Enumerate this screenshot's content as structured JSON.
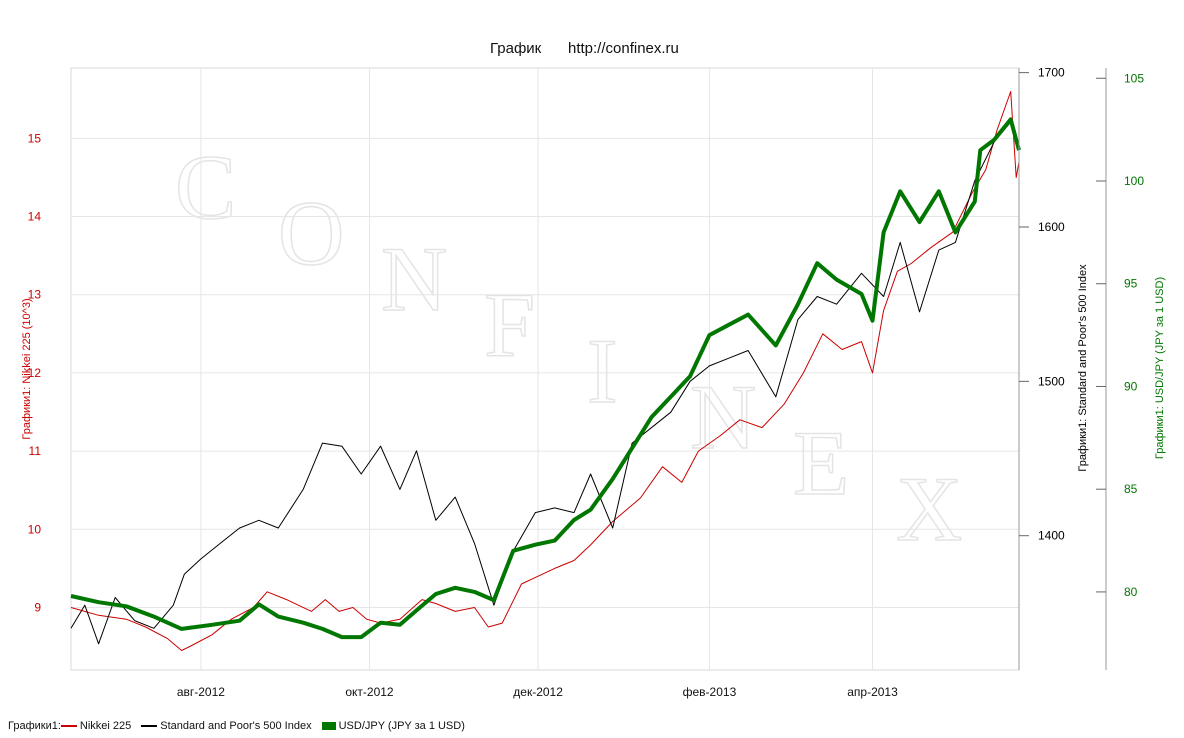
{
  "header": {
    "title": "График",
    "source": "http://confinex.ru"
  },
  "watermark": [
    "C",
    "O",
    "N",
    "F",
    "I",
    "N",
    "E",
    "X"
  ],
  "legend": {
    "prefix": "Графики1:",
    "items": [
      {
        "label": "Nikkei 225",
        "color": "#cc0000"
      },
      {
        "label": "Standard and Poor's 500 Index",
        "color": "#000000"
      },
      {
        "label": "USD/JPY (JPY за 1 USD)",
        "color": "#007700"
      }
    ]
  },
  "chart_data": {
    "type": "line",
    "title": "График",
    "x_ticks": [
      "авг-2012",
      "окт-2012",
      "дек-2012",
      "фев-2013",
      "апр-2013"
    ],
    "x_range": [
      "2012-06-15",
      "2013-05-24"
    ],
    "x_tick_dates": [
      "2012-08-01",
      "2012-10-01",
      "2012-12-01",
      "2013-02-01",
      "2013-04-01"
    ],
    "grid": true,
    "legend_position": "bottom-left",
    "axes": {
      "left": {
        "label": "Графики1: Nikkei 225 (10^3)",
        "range": [
          8.2,
          15.9
        ],
        "ticks": [
          9,
          10,
          11,
          12,
          13,
          14,
          15
        ],
        "color": "#cc0000"
      },
      "right1": {
        "label": "Графики1: Standard and Poor's 500 Index",
        "range": [
          1313,
          1703
        ],
        "ticks": [
          1400,
          1500,
          1600,
          1700
        ],
        "color": "#000000"
      },
      "right2": {
        "label": "Графики1: USD/JPY (JPY за 1 USD)",
        "range": [
          76.2,
          105.5
        ],
        "ticks": [
          80,
          85,
          90,
          95,
          100,
          105
        ],
        "color": "#007700"
      }
    },
    "series": [
      {
        "name": "Nikkei 225",
        "axis": "left",
        "color": "#cc0000",
        "points": [
          [
            "2012-06-15",
            9.0
          ],
          [
            "2012-06-25",
            8.9
          ],
          [
            "2012-07-05",
            8.85
          ],
          [
            "2012-07-12",
            8.75
          ],
          [
            "2012-07-20",
            8.6
          ],
          [
            "2012-07-25",
            8.45
          ],
          [
            "2012-07-28",
            8.5
          ],
          [
            "2012-08-05",
            8.65
          ],
          [
            "2012-08-12",
            8.85
          ],
          [
            "2012-08-20",
            9.0
          ],
          [
            "2012-08-25",
            9.2
          ],
          [
            "2012-09-01",
            9.1
          ],
          [
            "2012-09-10",
            8.95
          ],
          [
            "2012-09-15",
            9.1
          ],
          [
            "2012-09-20",
            8.95
          ],
          [
            "2012-09-25",
            9.0
          ],
          [
            "2012-09-30",
            8.85
          ],
          [
            "2012-10-05",
            8.8
          ],
          [
            "2012-10-12",
            8.85
          ],
          [
            "2012-10-20",
            9.1
          ],
          [
            "2012-10-25",
            9.05
          ],
          [
            "2012-11-01",
            8.95
          ],
          [
            "2012-11-08",
            9.0
          ],
          [
            "2012-11-13",
            8.75
          ],
          [
            "2012-11-18",
            8.8
          ],
          [
            "2012-11-25",
            9.3
          ],
          [
            "2012-12-01",
            9.4
          ],
          [
            "2012-12-07",
            9.5
          ],
          [
            "2012-12-14",
            9.6
          ],
          [
            "2012-12-20",
            9.8
          ],
          [
            "2012-12-28",
            10.1
          ],
          [
            "2013-01-07",
            10.4
          ],
          [
            "2013-01-15",
            10.8
          ],
          [
            "2013-01-22",
            10.6
          ],
          [
            "2013-01-28",
            11.0
          ],
          [
            "2013-02-05",
            11.2
          ],
          [
            "2013-02-12",
            11.4
          ],
          [
            "2013-02-20",
            11.3
          ],
          [
            "2013-02-28",
            11.6
          ],
          [
            "2013-03-07",
            12.0
          ],
          [
            "2013-03-14",
            12.5
          ],
          [
            "2013-03-21",
            12.3
          ],
          [
            "2013-03-28",
            12.4
          ],
          [
            "2013-04-01",
            12.0
          ],
          [
            "2013-04-05",
            12.8
          ],
          [
            "2013-04-10",
            13.3
          ],
          [
            "2013-04-15",
            13.4
          ],
          [
            "2013-04-22",
            13.6
          ],
          [
            "2013-04-30",
            13.8
          ],
          [
            "2013-05-07",
            14.3
          ],
          [
            "2013-05-12",
            14.6
          ],
          [
            "2013-05-16",
            15.1
          ],
          [
            "2013-05-21",
            15.6
          ],
          [
            "2013-05-23",
            14.5
          ],
          [
            "2013-05-24",
            14.7
          ]
        ]
      },
      {
        "name": "Standard and Poor's 500 Index",
        "axis": "right1",
        "color": "#000000",
        "points": [
          [
            "2012-06-15",
            1340
          ],
          [
            "2012-06-20",
            1355
          ],
          [
            "2012-06-25",
            1330
          ],
          [
            "2012-07-01",
            1360
          ],
          [
            "2012-07-08",
            1345
          ],
          [
            "2012-07-15",
            1340
          ],
          [
            "2012-07-22",
            1355
          ],
          [
            "2012-07-26",
            1375
          ],
          [
            "2012-08-01",
            1385
          ],
          [
            "2012-08-08",
            1395
          ],
          [
            "2012-08-15",
            1405
          ],
          [
            "2012-08-22",
            1410
          ],
          [
            "2012-08-29",
            1405
          ],
          [
            "2012-09-07",
            1430
          ],
          [
            "2012-09-14",
            1460
          ],
          [
            "2012-09-21",
            1458
          ],
          [
            "2012-09-28",
            1440
          ],
          [
            "2012-10-05",
            1458
          ],
          [
            "2012-10-12",
            1430
          ],
          [
            "2012-10-18",
            1455
          ],
          [
            "2012-10-25",
            1410
          ],
          [
            "2012-11-01",
            1425
          ],
          [
            "2012-11-08",
            1395
          ],
          [
            "2012-11-15",
            1355
          ],
          [
            "2012-11-22",
            1390
          ],
          [
            "2012-11-30",
            1415
          ],
          [
            "2012-12-07",
            1418
          ],
          [
            "2012-12-14",
            1415
          ],
          [
            "2012-12-20",
            1440
          ],
          [
            "2012-12-28",
            1405
          ],
          [
            "2013-01-04",
            1460
          ],
          [
            "2013-01-11",
            1470
          ],
          [
            "2013-01-18",
            1480
          ],
          [
            "2013-01-25",
            1500
          ],
          [
            "2013-02-01",
            1510
          ],
          [
            "2013-02-08",
            1515
          ],
          [
            "2013-02-15",
            1520
          ],
          [
            "2013-02-25",
            1490
          ],
          [
            "2013-03-05",
            1540
          ],
          [
            "2013-03-12",
            1555
          ],
          [
            "2013-03-19",
            1550
          ],
          [
            "2013-03-28",
            1570
          ],
          [
            "2013-04-05",
            1555
          ],
          [
            "2013-04-11",
            1590
          ],
          [
            "2013-04-18",
            1545
          ],
          [
            "2013-04-25",
            1585
          ],
          [
            "2013-05-01",
            1590
          ],
          [
            "2013-05-08",
            1630
          ],
          [
            "2013-05-15",
            1655
          ],
          [
            "2013-05-21",
            1668
          ],
          [
            "2013-05-24",
            1650
          ]
        ]
      },
      {
        "name": "USD/JPY (JPY за 1 USD)",
        "axis": "right2",
        "color": "#007700",
        "points": [
          [
            "2012-06-15",
            79.8
          ],
          [
            "2012-06-25",
            79.5
          ],
          [
            "2012-07-05",
            79.3
          ],
          [
            "2012-07-15",
            78.8
          ],
          [
            "2012-07-25",
            78.2
          ],
          [
            "2012-08-05",
            78.4
          ],
          [
            "2012-08-15",
            78.6
          ],
          [
            "2012-08-22",
            79.4
          ],
          [
            "2012-08-29",
            78.8
          ],
          [
            "2012-09-07",
            78.5
          ],
          [
            "2012-09-14",
            78.2
          ],
          [
            "2012-09-21",
            77.8
          ],
          [
            "2012-09-28",
            77.8
          ],
          [
            "2012-10-05",
            78.5
          ],
          [
            "2012-10-12",
            78.4
          ],
          [
            "2012-10-18",
            79.1
          ],
          [
            "2012-10-25",
            79.9
          ],
          [
            "2012-11-01",
            80.2
          ],
          [
            "2012-11-08",
            80.0
          ],
          [
            "2012-11-15",
            79.6
          ],
          [
            "2012-11-22",
            82.0
          ],
          [
            "2012-11-30",
            82.3
          ],
          [
            "2012-12-07",
            82.5
          ],
          [
            "2012-12-14",
            83.5
          ],
          [
            "2012-12-20",
            84.0
          ],
          [
            "2012-12-28",
            85.5
          ],
          [
            "2013-01-04",
            87.0
          ],
          [
            "2013-01-11",
            88.5
          ],
          [
            "2013-01-18",
            89.5
          ],
          [
            "2013-01-25",
            90.5
          ],
          [
            "2013-02-01",
            92.5
          ],
          [
            "2013-02-08",
            93.0
          ],
          [
            "2013-02-15",
            93.5
          ],
          [
            "2013-02-25",
            92.0
          ],
          [
            "2013-03-05",
            94.0
          ],
          [
            "2013-03-12",
            96.0
          ],
          [
            "2013-03-19",
            95.2
          ],
          [
            "2013-03-28",
            94.5
          ],
          [
            "2013-04-01",
            93.2
          ],
          [
            "2013-04-05",
            97.5
          ],
          [
            "2013-04-11",
            99.5
          ],
          [
            "2013-04-18",
            98.0
          ],
          [
            "2013-04-25",
            99.5
          ],
          [
            "2013-05-01",
            97.5
          ],
          [
            "2013-05-08",
            99.0
          ],
          [
            "2013-05-10",
            101.5
          ],
          [
            "2013-05-15",
            102.0
          ],
          [
            "2013-05-21",
            103.0
          ],
          [
            "2013-05-24",
            101.5
          ]
        ]
      }
    ]
  }
}
